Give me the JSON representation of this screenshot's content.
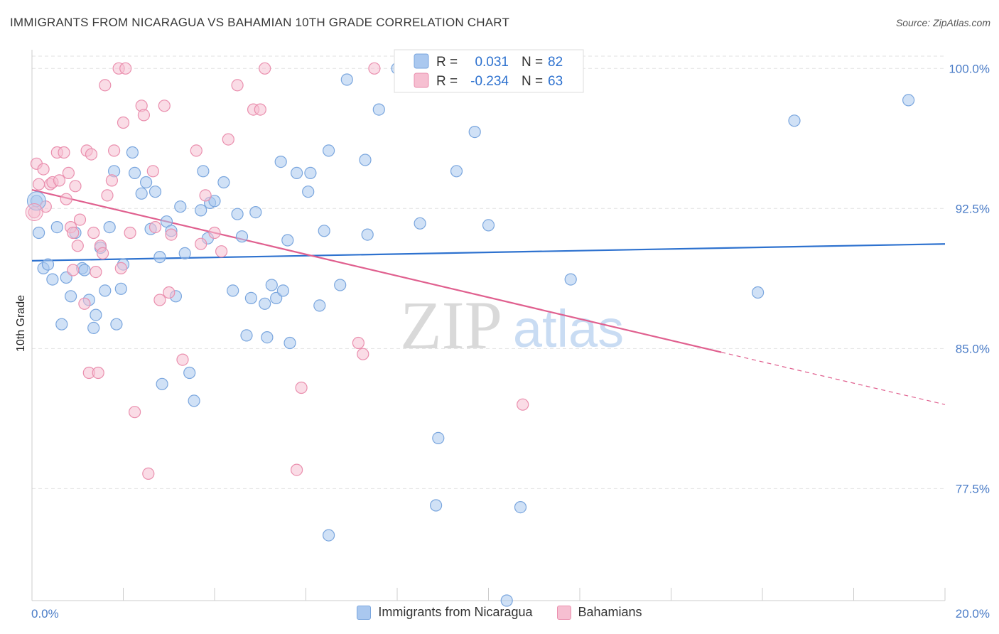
{
  "header": {
    "title": "IMMIGRANTS FROM NICARAGUA VS BAHAMIAN 10TH GRADE CORRELATION CHART",
    "source": "Source: ZipAtlas.com"
  },
  "watermark": {
    "zip": "ZIP",
    "atlas": "atlas"
  },
  "legend": {
    "rows": [
      {
        "r_label": "R =",
        "r_value": "0.031",
        "n_label": "N =",
        "n_value": "82"
      },
      {
        "r_label": "R =",
        "r_value": "-0.234",
        "n_label": "N =",
        "n_value": "63"
      }
    ]
  },
  "bottom_legend": {
    "items": [
      {
        "label": "Immigrants from Nicaragua"
      },
      {
        "label": "Bahamians"
      }
    ]
  },
  "colors": {
    "blue_fill": "#aac8ef",
    "blue_stroke": "#7aa6de",
    "blue_line": "#2e72cf",
    "pink_fill": "#f6bfd1",
    "pink_stroke": "#ea8fae",
    "pink_line": "#e0608f",
    "grid": "#e2e2e2",
    "tick_text": "#4a7cc7"
  },
  "chart_data": {
    "type": "scatter",
    "title": "IMMIGRANTS FROM NICARAGUA VS BAHAMIAN 10TH GRADE CORRELATION CHART",
    "xlabel": "",
    "ylabel": "10th Grade",
    "xlim": [
      0,
      20
    ],
    "ylim": [
      71.5,
      101
    ],
    "x_tick_labels": [
      "0.0%",
      "20.0%"
    ],
    "y_ticks": [
      {
        "value": 100.0,
        "label": "100.0%"
      },
      {
        "value": 92.5,
        "label": "92.5%"
      },
      {
        "value": 85.0,
        "label": "85.0%"
      },
      {
        "value": 77.5,
        "label": "77.5%"
      }
    ],
    "grid": true,
    "legend_position": "top-center",
    "series": [
      {
        "name": "Immigrants from Nicaragua",
        "r": 0.031,
        "n": 82,
        "trend": {
          "x0": 0,
          "y0": 89.7,
          "x1": 20,
          "y1": 90.6
        },
        "points": [
          [
            0.1,
            92.9
          ],
          [
            0.15,
            91.2
          ],
          [
            0.25,
            89.3
          ],
          [
            0.35,
            89.5
          ],
          [
            0.45,
            88.7
          ],
          [
            0.55,
            91.5
          ],
          [
            0.65,
            86.3
          ],
          [
            0.75,
            88.8
          ],
          [
            0.85,
            87.8
          ],
          [
            0.95,
            91.2
          ],
          [
            1.1,
            89.3
          ],
          [
            1.15,
            89.2
          ],
          [
            1.25,
            87.6
          ],
          [
            1.35,
            86.1
          ],
          [
            1.4,
            86.8
          ],
          [
            1.5,
            90.4
          ],
          [
            1.6,
            88.1
          ],
          [
            1.7,
            91.5
          ],
          [
            1.8,
            94.5
          ],
          [
            1.85,
            86.3
          ],
          [
            1.95,
            88.2
          ],
          [
            2.0,
            89.5
          ],
          [
            2.2,
            95.5
          ],
          [
            2.25,
            94.4
          ],
          [
            2.4,
            93.3
          ],
          [
            2.5,
            93.9
          ],
          [
            2.6,
            91.4
          ],
          [
            2.7,
            93.4
          ],
          [
            2.8,
            89.9
          ],
          [
            2.85,
            83.1
          ],
          [
            2.95,
            91.8
          ],
          [
            3.05,
            91.3
          ],
          [
            3.15,
            87.8
          ],
          [
            3.25,
            92.6
          ],
          [
            3.35,
            90.1
          ],
          [
            3.45,
            83.7
          ],
          [
            3.55,
            82.2
          ],
          [
            3.7,
            92.4
          ],
          [
            3.75,
            94.5
          ],
          [
            3.85,
            90.9
          ],
          [
            3.9,
            92.8
          ],
          [
            4.0,
            92.9
          ],
          [
            4.2,
            93.9
          ],
          [
            4.4,
            88.1
          ],
          [
            4.5,
            92.2
          ],
          [
            4.6,
            91.0
          ],
          [
            4.7,
            85.7
          ],
          [
            4.8,
            87.7
          ],
          [
            4.9,
            92.3
          ],
          [
            5.1,
            87.4
          ],
          [
            5.15,
            85.6
          ],
          [
            5.25,
            88.4
          ],
          [
            5.35,
            87.7
          ],
          [
            5.45,
            95.0
          ],
          [
            5.5,
            88.1
          ],
          [
            5.6,
            90.8
          ],
          [
            5.65,
            85.3
          ],
          [
            5.8,
            94.4
          ],
          [
            6.1,
            94.4
          ],
          [
            6.05,
            93.4
          ],
          [
            6.3,
            87.3
          ],
          [
            6.4,
            91.3
          ],
          [
            6.5,
            95.6
          ],
          [
            6.75,
            88.4
          ],
          [
            6.9,
            99.4
          ],
          [
            7.3,
            95.1
          ],
          [
            7.35,
            91.1
          ],
          [
            7.6,
            97.8
          ],
          [
            8.0,
            100.0
          ],
          [
            8.5,
            91.7
          ],
          [
            8.9,
            80.2
          ],
          [
            8.85,
            76.6
          ],
          [
            9.3,
            94.5
          ],
          [
            9.7,
            96.6
          ],
          [
            10.0,
            91.6
          ],
          [
            10.7,
            76.5
          ],
          [
            11.8,
            88.7
          ],
          [
            6.5,
            75.0
          ],
          [
            10.4,
            71.1
          ],
          [
            15.9,
            88.0
          ],
          [
            16.7,
            97.2
          ],
          [
            19.2,
            98.3
          ]
        ]
      },
      {
        "name": "Bahamians",
        "r": -0.234,
        "n": 63,
        "trend": {
          "x0": 0,
          "y0": 93.5,
          "x1": 15.1,
          "y1": 84.8,
          "dash_x1": 20,
          "dash_y1": 82.0
        },
        "points": [
          [
            0.05,
            92.3
          ],
          [
            0.1,
            94.9
          ],
          [
            0.15,
            93.8
          ],
          [
            0.25,
            94.6
          ],
          [
            0.3,
            92.6
          ],
          [
            0.4,
            93.8
          ],
          [
            0.45,
            93.9
          ],
          [
            0.55,
            95.5
          ],
          [
            0.6,
            94.0
          ],
          [
            0.7,
            95.5
          ],
          [
            0.75,
            93.0
          ],
          [
            0.8,
            94.4
          ],
          [
            0.85,
            91.5
          ],
          [
            0.9,
            91.2
          ],
          [
            0.95,
            93.7
          ],
          [
            1.0,
            90.5
          ],
          [
            1.05,
            91.9
          ],
          [
            1.15,
            87.4
          ],
          [
            1.2,
            95.6
          ],
          [
            1.25,
            83.7
          ],
          [
            1.3,
            95.4
          ],
          [
            1.35,
            91.2
          ],
          [
            1.4,
            89.1
          ],
          [
            1.45,
            83.7
          ],
          [
            1.5,
            90.5
          ],
          [
            1.55,
            90.1
          ],
          [
            1.6,
            99.1
          ],
          [
            1.65,
            93.2
          ],
          [
            1.75,
            94.0
          ],
          [
            1.8,
            95.6
          ],
          [
            1.9,
            100.0
          ],
          [
            1.95,
            89.3
          ],
          [
            2.0,
            97.1
          ],
          [
            2.05,
            100.0
          ],
          [
            2.15,
            91.2
          ],
          [
            2.25,
            81.6
          ],
          [
            2.4,
            98.0
          ],
          [
            2.45,
            97.5
          ],
          [
            2.55,
            78.3
          ],
          [
            2.65,
            94.5
          ],
          [
            2.8,
            87.6
          ],
          [
            2.9,
            98.0
          ],
          [
            3.0,
            88.0
          ],
          [
            3.05,
            91.1
          ],
          [
            3.3,
            84.4
          ],
          [
            3.6,
            95.6
          ],
          [
            3.7,
            90.6
          ],
          [
            3.8,
            93.2
          ],
          [
            4.0,
            91.2
          ],
          [
            4.15,
            90.2
          ],
          [
            4.3,
            96.2
          ],
          [
            4.5,
            99.1
          ],
          [
            4.85,
            97.8
          ],
          [
            5.0,
            97.8
          ],
          [
            5.1,
            100.0
          ],
          [
            5.8,
            78.5
          ],
          [
            5.9,
            82.9
          ],
          [
            7.15,
            85.3
          ],
          [
            7.25,
            84.7
          ],
          [
            7.5,
            100.0
          ],
          [
            10.75,
            82.0
          ],
          [
            0.9,
            89.2
          ],
          [
            2.7,
            91.5
          ]
        ]
      }
    ]
  }
}
